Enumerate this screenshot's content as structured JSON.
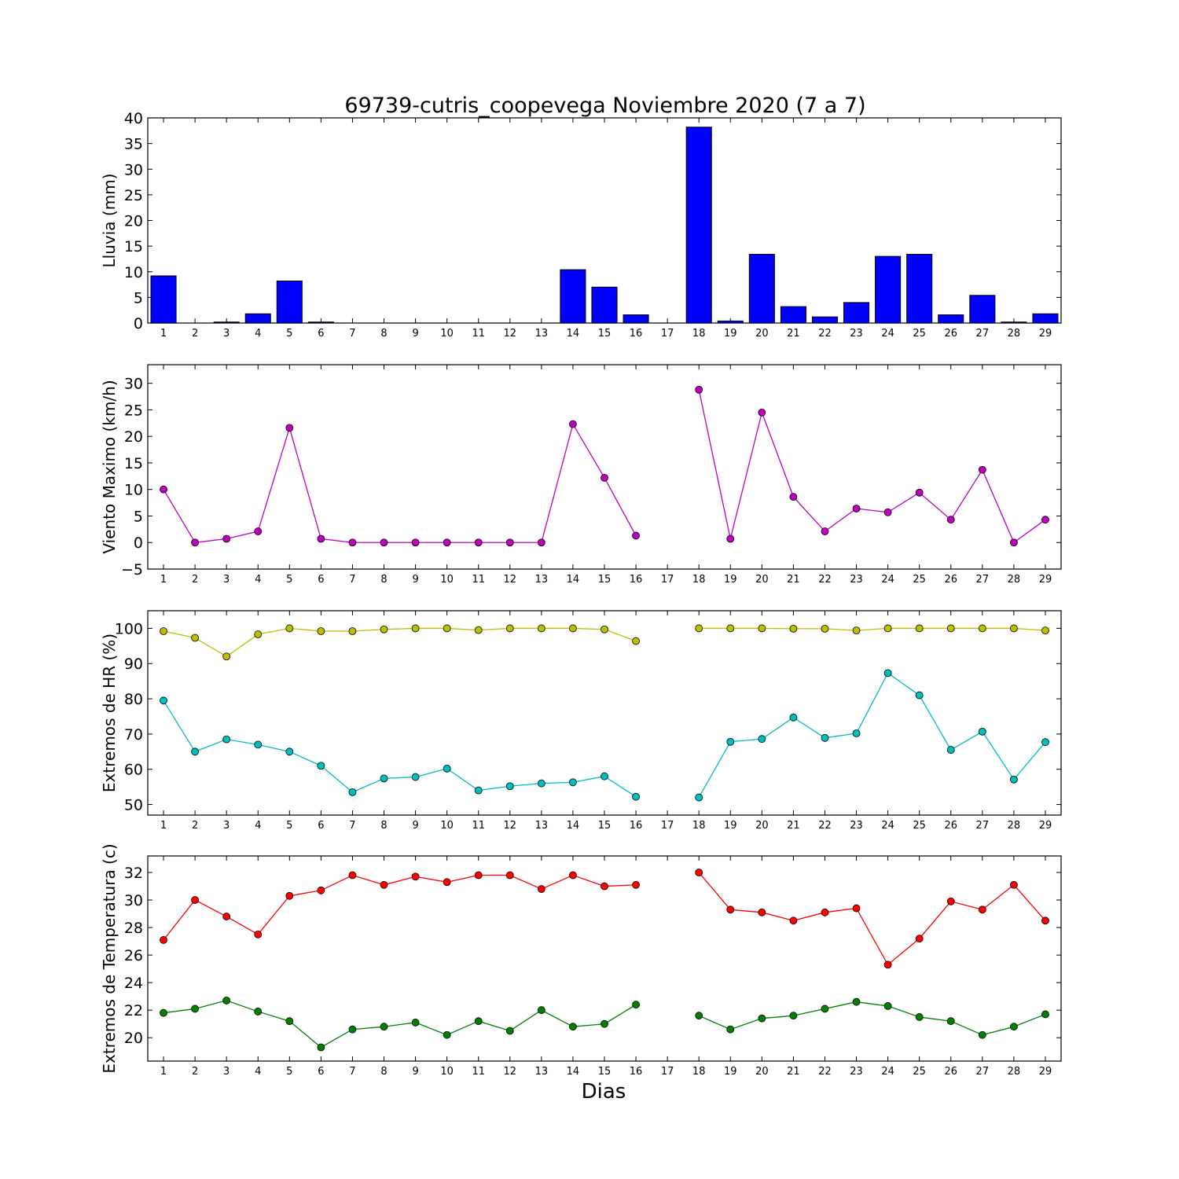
{
  "figure": {
    "title": "69739-cutris_coopevega Noviembre 2020  (7 a 7)",
    "xlabel": "Dias"
  },
  "chart_data": [
    {
      "type": "bar",
      "ylabel": "Lluvia (mm)",
      "categories": [
        "1",
        "2",
        "3",
        "4",
        "5",
        "6",
        "7",
        "8",
        "9",
        "10",
        "11",
        "12",
        "13",
        "14",
        "15",
        "16",
        "17",
        "18",
        "19",
        "20",
        "21",
        "22",
        "23",
        "24",
        "25",
        "26",
        "27",
        "28",
        "29"
      ],
      "values": [
        9.2,
        0,
        0.2,
        1.8,
        8.2,
        0.2,
        0,
        0,
        0,
        0,
        0,
        0,
        0,
        10.4,
        7.0,
        1.6,
        null,
        38.2,
        0.4,
        13.4,
        3.2,
        1.2,
        4.0,
        13.0,
        13.4,
        1.6,
        5.4,
        0.2,
        1.8
      ],
      "ylim": [
        0,
        40
      ],
      "yticks": [
        0,
        5,
        10,
        15,
        20,
        25,
        30,
        35,
        40
      ],
      "grid": false,
      "colors": {
        "bar": "#0000ff"
      }
    },
    {
      "type": "line",
      "ylabel": "Viento Maximo (km/h)",
      "categories": [
        "1",
        "2",
        "3",
        "4",
        "5",
        "6",
        "7",
        "8",
        "9",
        "10",
        "11",
        "12",
        "13",
        "14",
        "15",
        "16",
        "17",
        "18",
        "19",
        "20",
        "21",
        "22",
        "23",
        "24",
        "25",
        "26",
        "27",
        "28",
        "29"
      ],
      "series": [
        {
          "color": "#bf00bf",
          "values": [
            10.0,
            0,
            0.7,
            2.1,
            21.6,
            0.7,
            0,
            0,
            0,
            0,
            0,
            0,
            0,
            22.3,
            12.2,
            1.3,
            null,
            28.8,
            0.7,
            24.5,
            8.6,
            2.1,
            6.4,
            5.7,
            9.4,
            4.3,
            13.7,
            0,
            4.3
          ]
        }
      ],
      "ylim": [
        -5,
        33.5
      ],
      "yticks": [
        -5,
        0,
        5,
        10,
        15,
        20,
        25,
        30
      ],
      "grid": false
    },
    {
      "type": "line",
      "ylabel": "Extremos de HR (%)",
      "categories": [
        "1",
        "2",
        "3",
        "4",
        "5",
        "6",
        "7",
        "8",
        "9",
        "10",
        "11",
        "12",
        "13",
        "14",
        "15",
        "16",
        "17",
        "18",
        "19",
        "20",
        "21",
        "22",
        "23",
        "24",
        "25",
        "26",
        "27",
        "28",
        "29"
      ],
      "series": [
        {
          "color": "#bfbf00",
          "values": [
            99.2,
            97.3,
            92.0,
            98.3,
            100,
            99.2,
            99.2,
            99.7,
            100,
            100,
            99.5,
            100,
            100,
            100,
            99.7,
            96.4,
            null,
            100,
            100,
            100,
            99.9,
            99.9,
            99.4,
            100,
            100,
            100,
            100,
            100,
            99.4
          ]
        },
        {
          "color": "#00bfbf",
          "values": [
            79.5,
            65.0,
            68.5,
            67.0,
            65.0,
            61.0,
            53.5,
            57.4,
            57.8,
            60.2,
            54.0,
            55.2,
            56.0,
            56.3,
            58.0,
            52.2,
            null,
            52.0,
            67.8,
            68.6,
            74.7,
            68.9,
            70.2,
            87.3,
            81.0,
            65.5,
            70.7,
            57.1,
            67.7
          ]
        }
      ],
      "ylim": [
        47,
        105
      ],
      "yticks": [
        50,
        60,
        70,
        80,
        90,
        100
      ],
      "grid": false
    },
    {
      "type": "line",
      "ylabel": "Extremos de Temperatura (c)",
      "categories": [
        "1",
        "2",
        "3",
        "4",
        "5",
        "6",
        "7",
        "8",
        "9",
        "10",
        "11",
        "12",
        "13",
        "14",
        "15",
        "16",
        "17",
        "18",
        "19",
        "20",
        "21",
        "22",
        "23",
        "24",
        "25",
        "26",
        "27",
        "28",
        "29"
      ],
      "series": [
        {
          "color": "#ff0000",
          "values": [
            27.1,
            30.0,
            28.8,
            27.5,
            30.3,
            30.7,
            31.8,
            31.1,
            31.7,
            31.3,
            31.8,
            31.8,
            30.8,
            31.8,
            31.0,
            31.1,
            null,
            32.0,
            29.3,
            29.1,
            28.5,
            29.1,
            29.4,
            25.3,
            27.2,
            29.9,
            29.3,
            31.1,
            28.5
          ]
        },
        {
          "color": "#008000",
          "values": [
            21.8,
            22.1,
            22.7,
            21.9,
            21.2,
            19.3,
            20.6,
            20.8,
            21.1,
            20.2,
            21.2,
            20.5,
            22.0,
            20.8,
            21.0,
            22.4,
            null,
            21.6,
            20.6,
            21.4,
            21.6,
            22.1,
            22.6,
            22.3,
            21.5,
            21.2,
            20.2,
            20.8,
            21.7
          ]
        }
      ],
      "ylim": [
        18.3,
        33.2
      ],
      "yticks": [
        20,
        22,
        24,
        26,
        28,
        30,
        32
      ],
      "grid": false
    }
  ]
}
